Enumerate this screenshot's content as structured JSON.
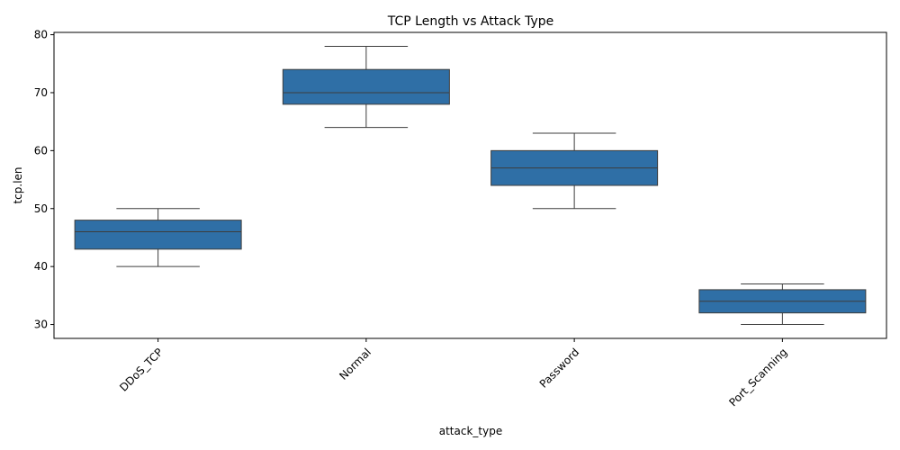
{
  "chart_data": {
    "type": "box",
    "title": "TCP Length vs Attack Type",
    "xlabel": "attack_type",
    "ylabel": "tcp.len",
    "ylim": [
      27.6,
      80.4
    ],
    "yticks": [
      30,
      40,
      50,
      60,
      70,
      80
    ],
    "grid": false,
    "color": "#2f6fa6",
    "categories": [
      "DDoS_TCP",
      "Normal",
      "Password",
      "Port_Scanning"
    ],
    "boxes": [
      {
        "category": "DDoS_TCP",
        "whisker_low": 40,
        "q1": 43,
        "median": 46,
        "q3": 48,
        "whisker_high": 50
      },
      {
        "category": "Normal",
        "whisker_low": 64,
        "q1": 68,
        "median": 70,
        "q3": 74,
        "whisker_high": 78
      },
      {
        "category": "Password",
        "whisker_low": 50,
        "q1": 54,
        "median": 57,
        "q3": 60,
        "whisker_high": 63
      },
      {
        "category": "Port_Scanning",
        "whisker_low": 30,
        "q1": 32,
        "median": 34,
        "q3": 36,
        "whisker_high": 37
      }
    ]
  }
}
